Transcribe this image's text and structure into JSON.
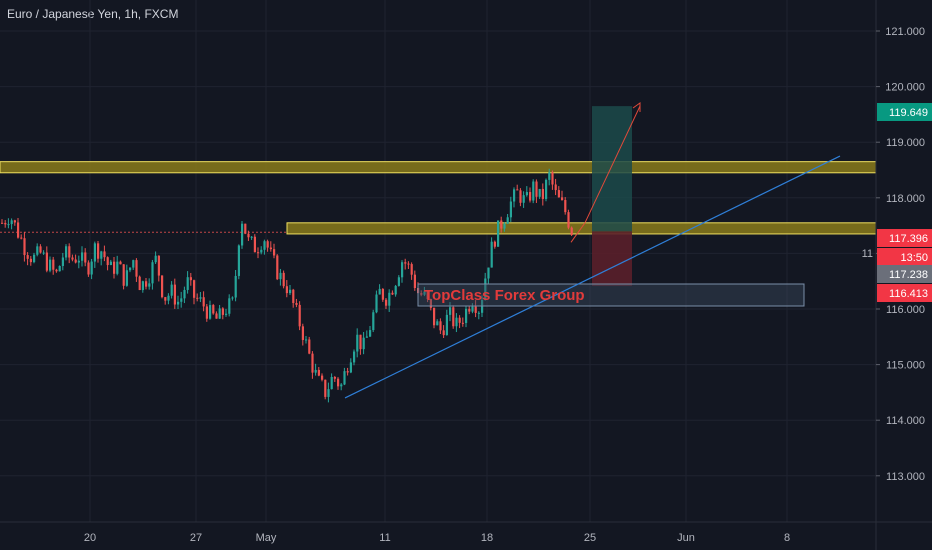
{
  "header": {
    "symbol_title": "Euro / Japanese Yen, 1h, FXCM"
  },
  "colors": {
    "background": "#131722",
    "grid": "#1f2330",
    "up_candle": "#26a69a",
    "down_candle": "#ef5350",
    "zone_fill": "#8a7a1a",
    "zone_border": "#f0e060",
    "trendline": "#2f7fd8",
    "target_zone": "#1c4a4a",
    "stop_zone": "#5a1f2a",
    "arrow": "#e24a3a"
  },
  "price_axis": {
    "labels": [
      "121.000",
      "120.000",
      "119.000",
      "118.000",
      "117.000",
      "116.000",
      "115.000",
      "114.000",
      "113.000"
    ],
    "tags": [
      {
        "text": "119.649",
        "bg": "#089981",
        "fg": "#ffffff"
      },
      {
        "text": "117.396",
        "bg": "#f23645",
        "fg": "#ffffff"
      },
      {
        "text": "13:50",
        "bg": "#f23645",
        "fg": "#ffffff"
      },
      {
        "text": "117.238",
        "bg": "#6b6f7a",
        "fg": "#ffffff"
      },
      {
        "text": "116.413",
        "bg": "#f23645",
        "fg": "#ffffff"
      }
    ],
    "partial_label": "11"
  },
  "time_axis": {
    "labels": [
      "20",
      "27",
      "May",
      "11",
      "18",
      "25",
      "Jun",
      "8"
    ]
  },
  "annotations": {
    "watermark": "TopClass Forex Group"
  },
  "chart_data": {
    "type": "candlestick",
    "symbol": "Euro / Japanese Yen",
    "interval": "1h",
    "source": "FXCM",
    "ylim": [
      112.3,
      121.6
    ],
    "x_ticks": [
      "20",
      "27",
      "May",
      "11",
      "18",
      "25",
      "Jun",
      "8"
    ],
    "y_ticks": [
      113,
      114,
      115,
      116,
      117,
      118,
      119,
      120,
      121
    ],
    "path_price_points": [
      117.55,
      117.7,
      117.4,
      117.1,
      116.9,
      117.0,
      116.8,
      116.6,
      117.0,
      116.9,
      116.95,
      116.7,
      117.1,
      117.05,
      116.7,
      116.8,
      116.5,
      116.9,
      116.4,
      116.6,
      116.9,
      116.2,
      116.3,
      116.1,
      116.5,
      116.2,
      116.1,
      115.9,
      115.8,
      116.0,
      116.1,
      117.7,
      117.2,
      117.1,
      117.3,
      116.9,
      116.6,
      116.4,
      116.0,
      115.6,
      115.1,
      114.7,
      114.5,
      114.8,
      114.6,
      115.1,
      115.5,
      115.3,
      115.8,
      116.3,
      116.2,
      116.5,
      116.9,
      116.7,
      116.3,
      116.2,
      115.8,
      115.6,
      115.9,
      115.7,
      115.9,
      116.2,
      116.0,
      116.8,
      117.3,
      117.6,
      117.9,
      118.1,
      117.9,
      118.2,
      117.95,
      118.4,
      118.0,
      117.8,
      117.4
    ],
    "horizontal_zones": [
      {
        "from_price": 118.45,
        "to_price": 118.65,
        "span": "full-width"
      },
      {
        "from_price": 117.35,
        "to_price": 117.55,
        "span": "from May 3 to right edge"
      }
    ],
    "trendline": {
      "start_price": 114.4,
      "end_price": 118.75,
      "extends": "up-right"
    },
    "long_position": {
      "target_price": 119.649,
      "entry_price": 117.396,
      "stop_price": 116.413
    },
    "last_price": 117.238,
    "countdown": "13:50"
  }
}
